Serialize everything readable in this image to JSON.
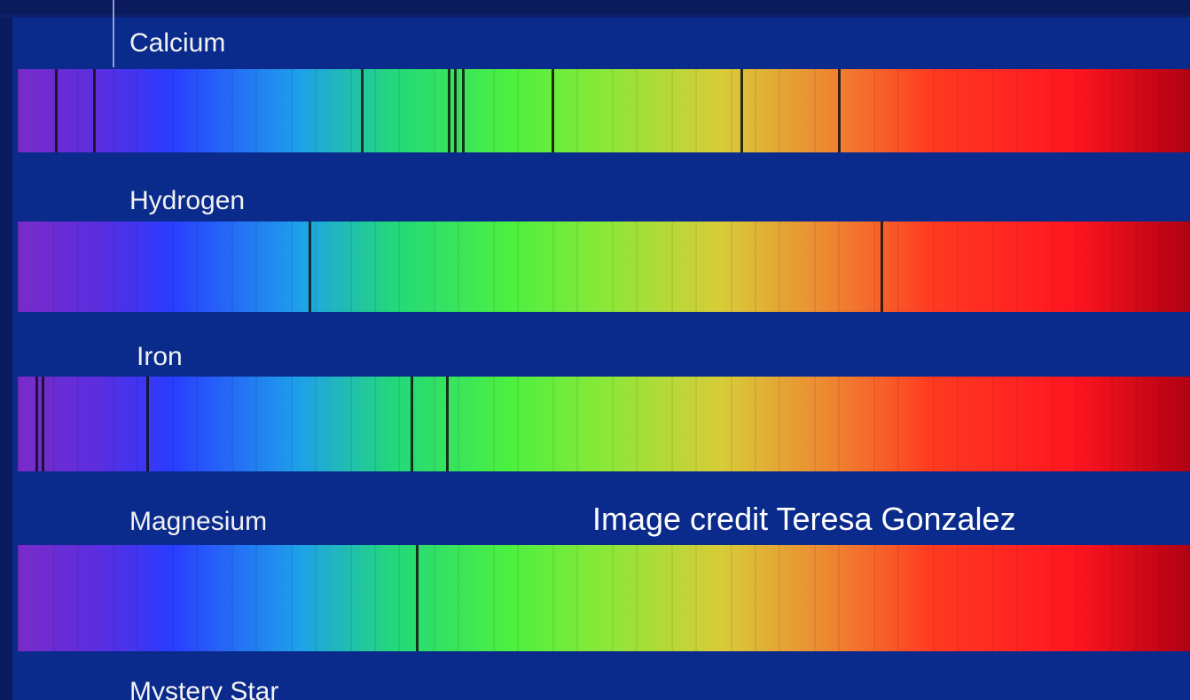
{
  "spectra": {
    "labels": [
      "Calcium",
      "Hydrogen",
      "Iron",
      "Magnesium",
      "Mystery Star"
    ]
  },
  "credit": "Image credit Teresa Gonzalez"
}
